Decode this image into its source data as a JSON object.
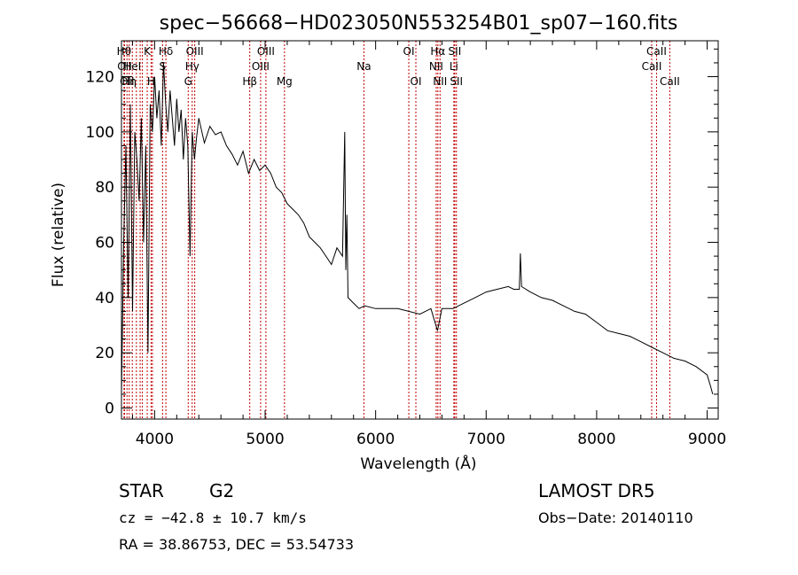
{
  "chart_data": {
    "type": "line",
    "title": "spec−56668−HD023050N553254B01_sp07−160.fits",
    "xlabel": "Wavelength (Å)",
    "ylabel": "Flux (relative)",
    "xlim": [
      3700,
      9100
    ],
    "ylim": [
      -4,
      133
    ],
    "xticks": [
      4000,
      5000,
      6000,
      7000,
      8000,
      9000
    ],
    "yticks": [
      0,
      20,
      40,
      60,
      80,
      100,
      120
    ],
    "grid": false,
    "series": [
      {
        "color": "#000000",
        "x": [
          3700,
          3720,
          3740,
          3760,
          3780,
          3800,
          3820,
          3840,
          3860,
          3880,
          3900,
          3920,
          3940,
          3960,
          3980,
          4000,
          4020,
          4040,
          4060,
          4080,
          4100,
          4120,
          4140,
          4160,
          4180,
          4200,
          4220,
          4240,
          4260,
          4280,
          4300,
          4320,
          4340,
          4360,
          4380,
          4400,
          4450,
          4500,
          4550,
          4600,
          4650,
          4700,
          4750,
          4800,
          4850,
          4900,
          4950,
          5000,
          5050,
          5100,
          5150,
          5200,
          5250,
          5300,
          5350,
          5400,
          5450,
          5500,
          5550,
          5600,
          5650,
          5700,
          5720,
          5730,
          5740,
          5750,
          5800,
          5850,
          5900,
          6000,
          6100,
          6200,
          6300,
          6400,
          6500,
          6560,
          6600,
          6700,
          6800,
          6900,
          7000,
          7100,
          7200,
          7250,
          7300,
          7310,
          7320,
          7400,
          7500,
          7600,
          7700,
          7800,
          7900,
          8000,
          8100,
          8200,
          8300,
          8400,
          8500,
          8600,
          8700,
          8800,
          8900,
          9000,
          9030,
          9050
        ],
        "y": [
          5,
          60,
          95,
          40,
          110,
          35,
          100,
          90,
          75,
          105,
          60,
          95,
          20,
          110,
          100,
          120,
          105,
          115,
          95,
          125,
          110,
          100,
          115,
          105,
          95,
          112,
          100,
          108,
          90,
          105,
          95,
          55,
          100,
          90,
          98,
          105,
          96,
          102,
          99,
          100,
          95,
          92,
          88,
          93,
          85,
          90,
          86,
          88,
          85,
          80,
          78,
          74,
          72,
          70,
          67,
          62,
          60,
          58,
          55,
          52,
          58,
          55,
          100,
          50,
          70,
          40,
          38,
          36,
          37,
          36,
          36,
          36,
          35,
          34,
          36,
          28,
          36,
          36,
          38,
          40,
          42,
          43,
          44,
          43,
          43,
          56,
          44,
          42,
          40,
          39,
          37,
          35,
          34,
          31,
          28,
          27,
          26,
          24,
          22,
          20,
          18,
          17,
          15,
          12,
          8,
          5
        ]
      }
    ],
    "lines": [
      {
        "x": 3723,
        "label": "Hθ",
        "row": 0
      },
      {
        "x": 3728,
        "label": "OII",
        "row": 1
      },
      {
        "x": 3750,
        "label": "OII",
        "row": 2
      },
      {
        "x": 3770,
        "label": "Hη",
        "row": 2
      },
      {
        "x": 3798,
        "label": "HeI",
        "row": 1
      },
      {
        "x": 3835,
        "label": "",
        "row": 0
      },
      {
        "x": 3869,
        "label": "",
        "row": 0
      },
      {
        "x": 3889,
        "label": "",
        "row": 0
      },
      {
        "x": 3933,
        "label": "K",
        "row": 0
      },
      {
        "x": 3968,
        "label": "H",
        "row": 2
      },
      {
        "x": 3980,
        "label": "",
        "row": 0
      },
      {
        "x": 4072,
        "label": "S",
        "row": 1
      },
      {
        "x": 4102,
        "label": "Hδ",
        "row": 0
      },
      {
        "x": 4304,
        "label": "G",
        "row": 2
      },
      {
        "x": 4340,
        "label": "Hγ",
        "row": 1
      },
      {
        "x": 4363,
        "label": "OIII",
        "row": 0
      },
      {
        "x": 4861,
        "label": "Hβ",
        "row": 2
      },
      {
        "x": 4959,
        "label": "OIII",
        "row": 1
      },
      {
        "x": 5007,
        "label": "OIII",
        "row": 0
      },
      {
        "x": 5175,
        "label": "Mg",
        "row": 2
      },
      {
        "x": 5894,
        "label": "Na",
        "row": 1
      },
      {
        "x": 6300,
        "label": "OI",
        "row": 0
      },
      {
        "x": 6364,
        "label": "OI",
        "row": 2
      },
      {
        "x": 6548,
        "label": "NII",
        "row": 1
      },
      {
        "x": 6563,
        "label": "Hα",
        "row": 0
      },
      {
        "x": 6583,
        "label": "NII",
        "row": 2
      },
      {
        "x": 6708,
        "label": "Li",
        "row": 1
      },
      {
        "x": 6716,
        "label": "SII",
        "row": 0
      },
      {
        "x": 6731,
        "label": "SII",
        "row": 2
      },
      {
        "x": 8498,
        "label": "CaII",
        "row": 1
      },
      {
        "x": 8542,
        "label": "CaII",
        "row": 0
      },
      {
        "x": 8662,
        "label": "CaII",
        "row": 2
      }
    ]
  },
  "info": {
    "object_class": "STAR",
    "subclass": "G2",
    "survey": "LAMOST DR5",
    "cz": "cz = −42.8 ± 10.7 km/s",
    "obs_date": "Obs−Date: 20140110",
    "coords": "RA =  38.86753, DEC =  53.54733"
  }
}
